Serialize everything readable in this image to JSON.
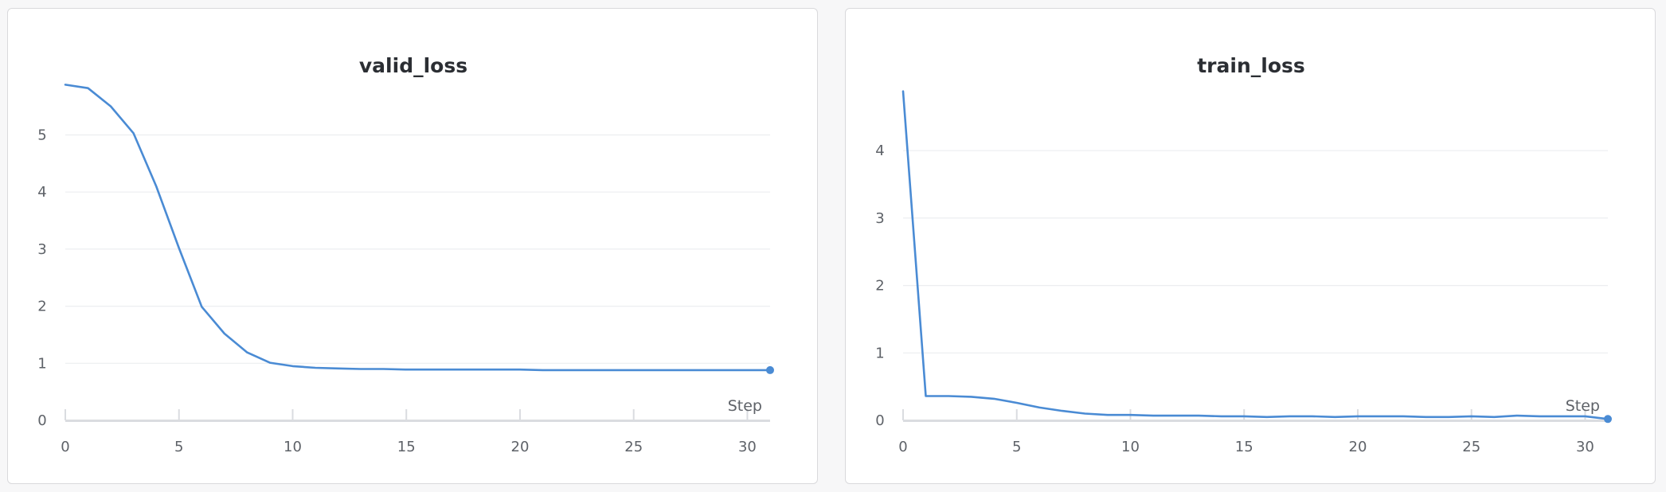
{
  "chart_data": [
    {
      "type": "line",
      "title": "valid_loss",
      "xlabel": "Step",
      "ylabel": "",
      "xlim": [
        0,
        31
      ],
      "ylim": [
        0,
        6
      ],
      "xticks": [
        0,
        5,
        10,
        15,
        20,
        25,
        30
      ],
      "yticks": [
        0,
        1,
        2,
        3,
        4,
        5
      ],
      "grid": true,
      "series": [
        {
          "color": "#4a8bd4",
          "x": [
            0,
            1,
            2,
            3,
            4,
            5,
            6,
            7,
            8,
            9,
            10,
            11,
            12,
            13,
            14,
            15,
            16,
            17,
            18,
            19,
            20,
            21,
            22,
            23,
            24,
            25,
            26,
            27,
            28,
            29,
            30,
            31
          ],
          "y": [
            5.88,
            5.82,
            5.5,
            5.03,
            4.1,
            3.02,
            1.99,
            1.52,
            1.19,
            1.01,
            0.95,
            0.92,
            0.91,
            0.9,
            0.9,
            0.89,
            0.89,
            0.89,
            0.89,
            0.89,
            0.89,
            0.88,
            0.88,
            0.88,
            0.88,
            0.88,
            0.88,
            0.88,
            0.88,
            0.88,
            0.88,
            0.88
          ]
        }
      ]
    },
    {
      "type": "line",
      "title": "train_loss",
      "xlabel": "Step",
      "ylabel": "",
      "xlim": [
        0,
        31
      ],
      "ylim": [
        0,
        5
      ],
      "xticks": [
        0,
        5,
        10,
        15,
        20,
        25,
        30
      ],
      "yticks": [
        0,
        1,
        2,
        3,
        4
      ],
      "grid": true,
      "series": [
        {
          "color": "#4a8bd4",
          "x": [
            0,
            1,
            2,
            3,
            4,
            5,
            6,
            7,
            8,
            9,
            10,
            11,
            12,
            13,
            14,
            15,
            16,
            17,
            18,
            19,
            20,
            21,
            22,
            23,
            24,
            25,
            26,
            27,
            28,
            29,
            30,
            31
          ],
          "y": [
            4.88,
            0.36,
            0.36,
            0.35,
            0.32,
            0.26,
            0.19,
            0.14,
            0.1,
            0.08,
            0.08,
            0.07,
            0.07,
            0.07,
            0.06,
            0.06,
            0.05,
            0.06,
            0.06,
            0.05,
            0.06,
            0.06,
            0.06,
            0.05,
            0.05,
            0.06,
            0.05,
            0.07,
            0.06,
            0.06,
            0.06,
            0.02
          ]
        }
      ]
    }
  ]
}
